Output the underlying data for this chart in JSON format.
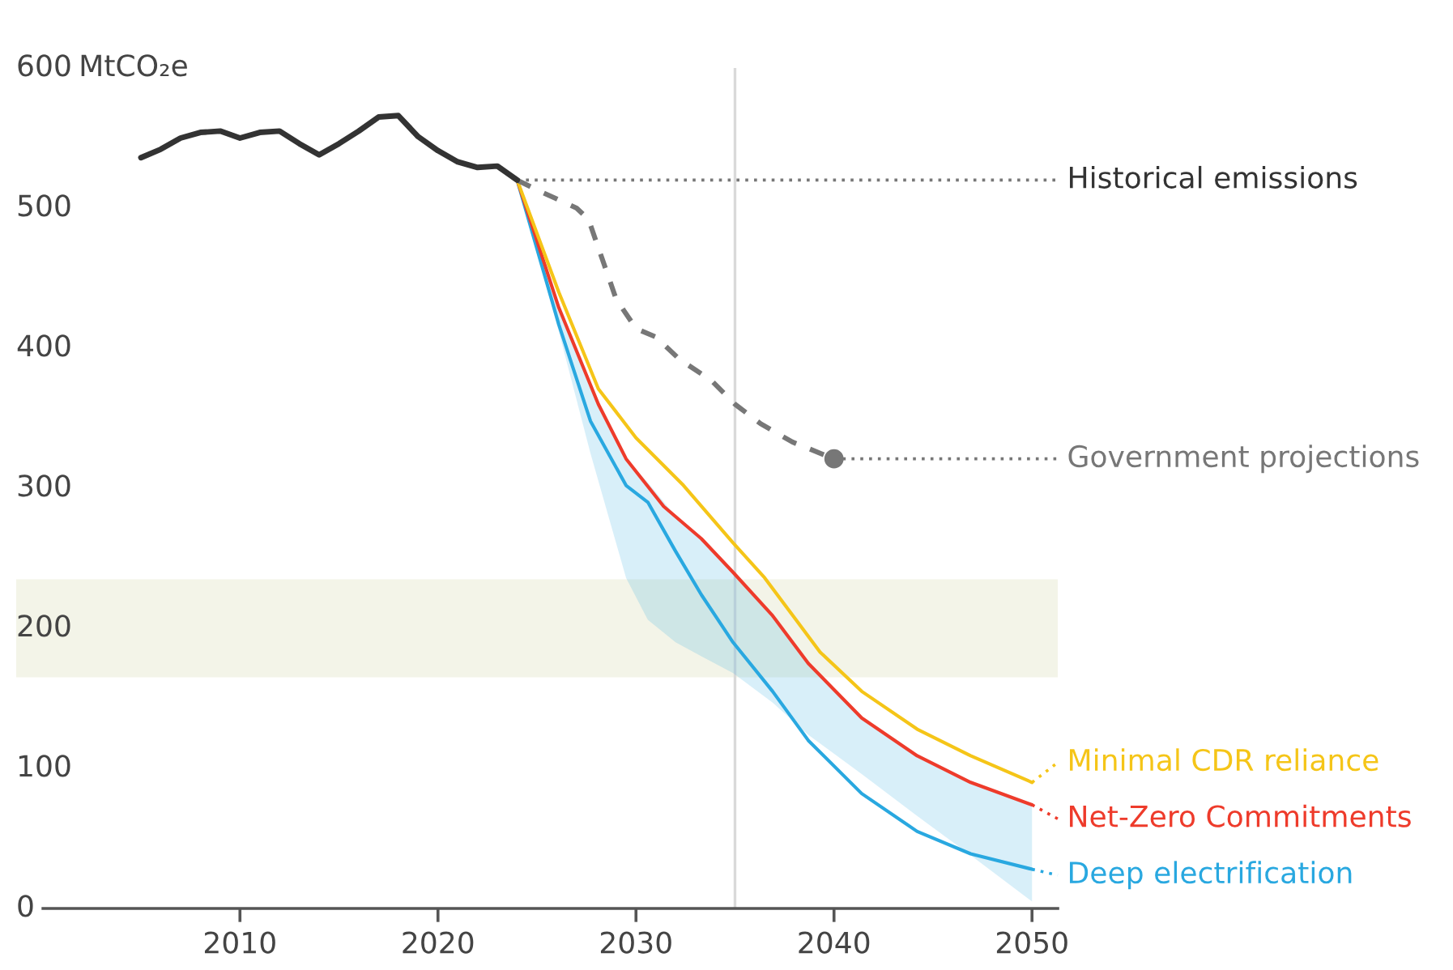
{
  "chart_data": {
    "type": "line",
    "ylabel": "MtCO₂e",
    "xlim": [
      1998.7,
      2051.3
    ],
    "xticks": [
      2010,
      2020,
      2030,
      2040,
      2050
    ],
    "ylim": [
      0,
      600
    ],
    "yticks": [
      0,
      100,
      200,
      300,
      400,
      500,
      600
    ],
    "grid": false,
    "legend": "right",
    "series": [
      {
        "name": "Historical emissions",
        "color": "#333333",
        "line_style": "solid",
        "x": [
          2005,
          2006,
          2007,
          2008,
          2009,
          2010,
          2011,
          2012,
          2013,
          2014,
          2015,
          2016,
          2017,
          2018,
          2019,
          2020,
          2021,
          2022,
          2023,
          2024
        ],
        "values": [
          536,
          542,
          550,
          554,
          555,
          550,
          554,
          555,
          546,
          538,
          546,
          555,
          565,
          566,
          551,
          541,
          533,
          529,
          530,
          520
        ]
      },
      {
        "name": "Government projections",
        "color": "#777777",
        "line_style": "dashed",
        "x": [
          2024,
          2025,
          2027,
          2027.6,
          2029,
          2030,
          2031,
          2032.2,
          2033.8,
          2035,
          2036.3,
          2037.9,
          2040
        ],
        "values": [
          520,
          513,
          500,
          492,
          435,
          414,
          408,
          392,
          377,
          360,
          346,
          333,
          321
        ]
      },
      {
        "name": "Minimal CDR reliance",
        "color": "#f5c518",
        "line_style": "solid",
        "x": [
          2024,
          2026.1,
          2028.1,
          2030,
          2032.4,
          2034.9,
          2036.5,
          2039.3,
          2041.4,
          2044.2,
          2046.9,
          2050
        ],
        "values": [
          520,
          440,
          371,
          336,
          302,
          261,
          236,
          183,
          155,
          128,
          109,
          90
        ]
      },
      {
        "name": "Net-Zero Commitments",
        "color": "#ee3b2b",
        "line_style": "solid",
        "x": [
          2024,
          2026.1,
          2028.1,
          2029.5,
          2031.4,
          2033.3,
          2034.9,
          2036.9,
          2038.7,
          2041.4,
          2044.2,
          2046.9,
          2050
        ],
        "values": [
          520,
          429,
          360,
          321,
          287,
          264,
          240,
          209,
          175,
          136,
          109,
          90,
          74
        ]
      },
      {
        "name": "Deep electrification",
        "color": "#29a8e0",
        "line_style": "solid",
        "x": [
          2024,
          2026.1,
          2027.7,
          2029.5,
          2030.6,
          2032,
          2033.3,
          2034.9,
          2036.9,
          2038.7,
          2041.4,
          2044.2,
          2046.9,
          2050
        ],
        "values": [
          520,
          417,
          348,
          302,
          290,
          255,
          224,
          190,
          155,
          120,
          82,
          55,
          39,
          28
        ],
        "lower": [
          520,
          412,
          325,
          236,
          206,
          190,
          180,
          168,
          147,
          124,
          96,
          66,
          38,
          5
        ],
        "upper": [
          520,
          429,
          372,
          321,
          304,
          280,
          264,
          240,
          209,
          175,
          136,
          109,
          90,
          74
        ]
      },
      {
        "type": "scatter",
        "color": "#777777",
        "marker": "circle",
        "x": [
          2040
        ],
        "values": [
          321
        ]
      }
    ],
    "ref_lines": [
      {
        "axis": "x",
        "value": 2035,
        "color": "#d9d9d9"
      }
    ],
    "bands": [
      {
        "axis": "y",
        "from": 165,
        "to": 235,
        "color": "#f3f4e8"
      }
    ]
  }
}
